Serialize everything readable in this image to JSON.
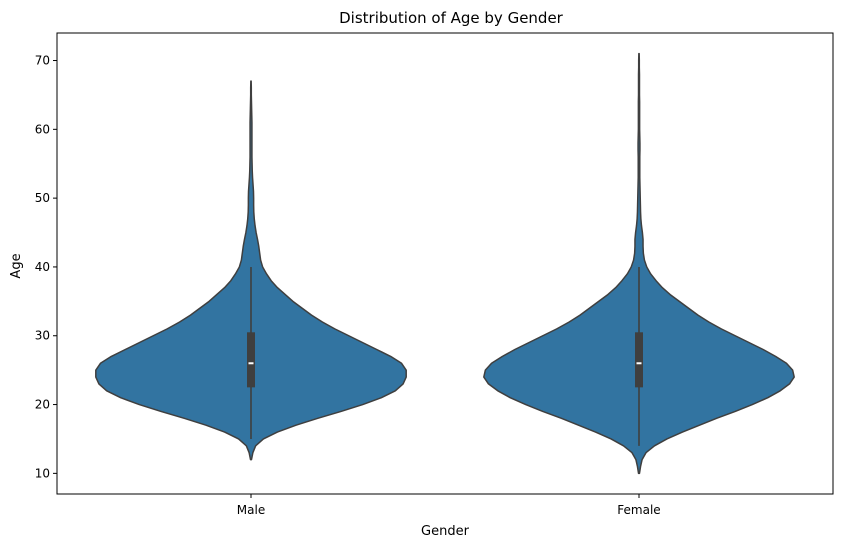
{
  "chart_data": {
    "type": "violin",
    "title": "Distribution of Age by Gender",
    "xlabel": "Gender",
    "ylabel": "Age",
    "ylim": [
      7,
      74
    ],
    "yticks": [
      10,
      20,
      30,
      40,
      50,
      60,
      70
    ],
    "grid": false,
    "colors": {
      "fill": "#3274a1",
      "edge": "#3f3f3f",
      "box": "#3f3f3f",
      "median": "#ffffff"
    },
    "categories": [
      "Male",
      "Female"
    ],
    "violins": [
      {
        "category": "Male",
        "min": 12,
        "max": 67,
        "q1": 22.5,
        "median": 26,
        "q3": 30.5,
        "whisker_low": 15,
        "whisker_high": 40,
        "density": [
          [
            12,
            0.003
          ],
          [
            13,
            0.012
          ],
          [
            14,
            0.03
          ],
          [
            15,
            0.08
          ],
          [
            16,
            0.17
          ],
          [
            17,
            0.29
          ],
          [
            18,
            0.43
          ],
          [
            19,
            0.58
          ],
          [
            20,
            0.72
          ],
          [
            21,
            0.84
          ],
          [
            22,
            0.93
          ],
          [
            23,
            0.98
          ],
          [
            24,
            1.0
          ],
          [
            25,
            1.0
          ],
          [
            26,
            0.97
          ],
          [
            27,
            0.9
          ],
          [
            28,
            0.81
          ],
          [
            29,
            0.72
          ],
          [
            30,
            0.63
          ],
          [
            31,
            0.54
          ],
          [
            32,
            0.46
          ],
          [
            33,
            0.39
          ],
          [
            34,
            0.33
          ],
          [
            35,
            0.27
          ],
          [
            36,
            0.22
          ],
          [
            37,
            0.17
          ],
          [
            38,
            0.13
          ],
          [
            39,
            0.1
          ],
          [
            40,
            0.075
          ],
          [
            41,
            0.062
          ],
          [
            42,
            0.056
          ],
          [
            43,
            0.05
          ],
          [
            44,
            0.042
          ],
          [
            45,
            0.033
          ],
          [
            46,
            0.026
          ],
          [
            47,
            0.021
          ],
          [
            48,
            0.018
          ],
          [
            49,
            0.017
          ],
          [
            50,
            0.017
          ],
          [
            51,
            0.016
          ],
          [
            52,
            0.013
          ],
          [
            53,
            0.01
          ],
          [
            54,
            0.008
          ],
          [
            55,
            0.007
          ],
          [
            56,
            0.006
          ],
          [
            57,
            0.006
          ],
          [
            58,
            0.006
          ],
          [
            59,
            0.006
          ],
          [
            60,
            0.006
          ],
          [
            61,
            0.006
          ],
          [
            62,
            0.005
          ],
          [
            63,
            0.004
          ],
          [
            64,
            0.003
          ],
          [
            65,
            0.002
          ],
          [
            66,
            0.002
          ],
          [
            67,
            0.001
          ]
        ]
      },
      {
        "category": "Female",
        "min": 10,
        "max": 71,
        "q1": 22.5,
        "median": 26,
        "q3": 30.5,
        "whisker_low": 14,
        "whisker_high": 40,
        "density": [
          [
            10,
            0.003
          ],
          [
            11,
            0.01
          ],
          [
            12,
            0.02
          ],
          [
            13,
            0.045
          ],
          [
            14,
            0.1
          ],
          [
            15,
            0.18
          ],
          [
            16,
            0.28
          ],
          [
            17,
            0.39
          ],
          [
            18,
            0.5
          ],
          [
            19,
            0.62
          ],
          [
            20,
            0.73
          ],
          [
            21,
            0.83
          ],
          [
            22,
            0.91
          ],
          [
            23,
            0.97
          ],
          [
            24,
            1.0
          ],
          [
            25,
            0.99
          ],
          [
            26,
            0.95
          ],
          [
            27,
            0.88
          ],
          [
            28,
            0.8
          ],
          [
            29,
            0.71
          ],
          [
            30,
            0.62
          ],
          [
            31,
            0.53
          ],
          [
            32,
            0.45
          ],
          [
            33,
            0.38
          ],
          [
            34,
            0.32
          ],
          [
            35,
            0.26
          ],
          [
            36,
            0.2
          ],
          [
            37,
            0.15
          ],
          [
            38,
            0.11
          ],
          [
            39,
            0.075
          ],
          [
            40,
            0.05
          ],
          [
            41,
            0.035
          ],
          [
            42,
            0.028
          ],
          [
            43,
            0.026
          ],
          [
            44,
            0.026
          ],
          [
            45,
            0.022
          ],
          [
            46,
            0.016
          ],
          [
            47,
            0.012
          ],
          [
            48,
            0.01
          ],
          [
            49,
            0.009
          ],
          [
            50,
            0.008
          ],
          [
            51,
            0.007
          ],
          [
            52,
            0.006
          ],
          [
            53,
            0.005
          ],
          [
            54,
            0.005
          ],
          [
            55,
            0.005
          ],
          [
            56,
            0.005
          ],
          [
            57,
            0.006
          ],
          [
            58,
            0.006
          ],
          [
            59,
            0.005
          ],
          [
            60,
            0.004
          ],
          [
            61,
            0.004
          ],
          [
            62,
            0.004
          ],
          [
            63,
            0.004
          ],
          [
            64,
            0.004
          ],
          [
            65,
            0.003
          ],
          [
            66,
            0.003
          ],
          [
            67,
            0.003
          ],
          [
            68,
            0.003
          ],
          [
            69,
            0.002
          ],
          [
            70,
            0.002
          ],
          [
            71,
            0.001
          ]
        ]
      }
    ]
  }
}
